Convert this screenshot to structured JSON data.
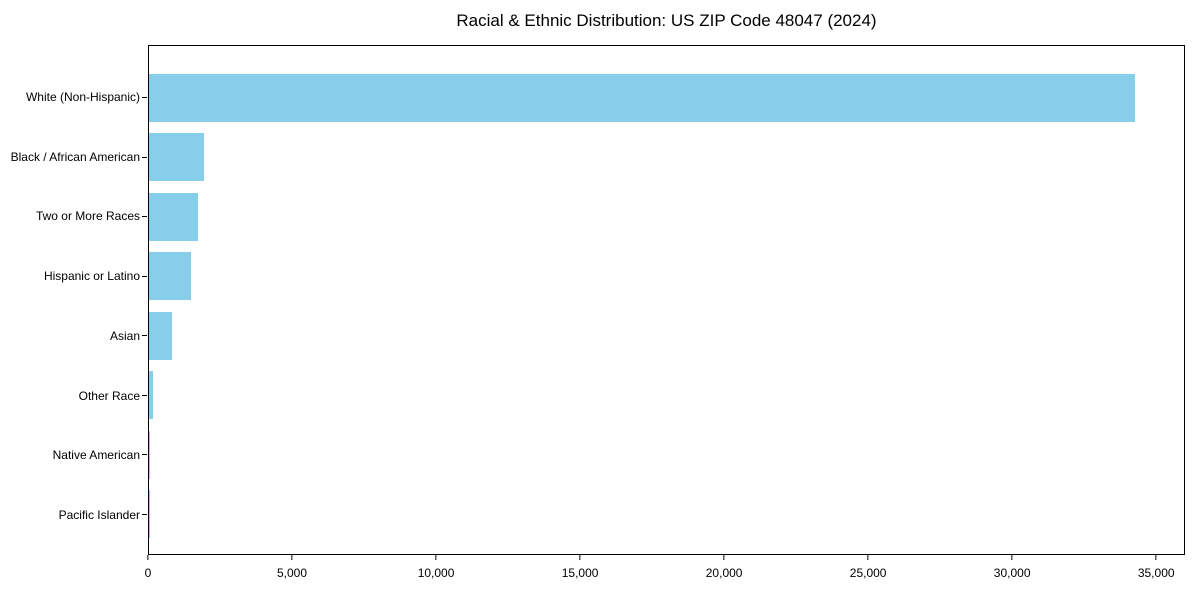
{
  "chart_data": {
    "type": "bar",
    "orientation": "horizontal",
    "title": "Racial & Ethnic Distribution: US ZIP Code 48047 (2024)",
    "categories": [
      "White (Non-Hispanic)",
      "Black / African American",
      "Two or More Races",
      "Hispanic or Latino",
      "Asian",
      "Other Race",
      "Native American",
      "Pacific Islander"
    ],
    "values": [
      34300,
      1900,
      1700,
      1450,
      800,
      150,
      30,
      10
    ],
    "xlabel": "",
    "ylabel": "",
    "xlim": [
      0,
      36000
    ],
    "xticks": [
      0,
      5000,
      10000,
      15000,
      20000,
      25000,
      30000,
      35000
    ],
    "xtick_labels": [
      "0",
      "5,000",
      "10,000",
      "15,000",
      "20,000",
      "25,000",
      "30,000",
      "35,000"
    ],
    "bar_color": "#87CEEB",
    "axis_color": "#000000",
    "background_color": "#ffffff",
    "grid": false,
    "legend": null
  }
}
